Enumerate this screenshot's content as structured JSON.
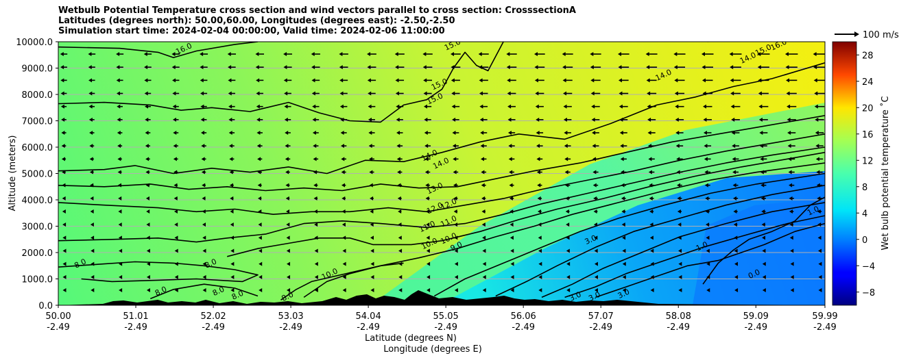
{
  "title": {
    "line1": "Wetbulb Potential Temperature cross section and wind vectors parallel to cross section: CrosssectionA",
    "line2": "Latitudes (degrees north): 50.00,60.00, Longitudes (degrees east): -2.50,-2.50",
    "line3": "Simulation start time: 2024-02-04 00:00:00, Valid time: 2024-02-06 11:00:00"
  },
  "chart_data": {
    "type": "heatmap",
    "xlabel_line1": "Latitude (degrees N)",
    "xlabel_line2": "Longitude (degrees E)",
    "ylabel": "Altitude (meters)",
    "x_range": [
      50.0,
      59.99
    ],
    "y_range": [
      0,
      10000
    ],
    "x_ticks": [
      {
        "lat": "50.00",
        "lon": "-2.49",
        "value": 50.0
      },
      {
        "lat": "51.01",
        "lon": "-2.49",
        "value": 51.01
      },
      {
        "lat": "52.02",
        "lon": "-2.49",
        "value": 52.02
      },
      {
        "lat": "53.03",
        "lon": "-2.49",
        "value": 53.03
      },
      {
        "lat": "54.04",
        "lon": "-2.49",
        "value": 54.04
      },
      {
        "lat": "55.05",
        "lon": "-2.49",
        "value": 55.05
      },
      {
        "lat": "56.06",
        "lon": "-2.49",
        "value": 56.06
      },
      {
        "lat": "57.07",
        "lon": "-2.49",
        "value": 57.07
      },
      {
        "lat": "58.08",
        "lon": "-2.49",
        "value": 58.08
      },
      {
        "lat": "59.09",
        "lon": "-2.49",
        "value": 59.09
      },
      {
        "lat": "59.99",
        "lon": "-2.49",
        "value": 59.99
      }
    ],
    "y_ticks": [
      "0.0",
      "1000.0",
      "2000.0",
      "3000.0",
      "4000.0",
      "5000.0",
      "6000.0",
      "7000.0",
      "8000.0",
      "9000.0",
      "10000.0"
    ],
    "grid": "horizontal",
    "colorbar": {
      "label": "Wet bulb potential temperature $^\\circ$C",
      "label_display": "Wet bulb potential temperature ˚C",
      "range": [
        -10,
        30
      ],
      "ticks": [
        "−8",
        "−4",
        "0",
        "4",
        "8",
        "12",
        "16",
        "20",
        "24",
        "28"
      ],
      "tick_values": [
        -8,
        -4,
        0,
        4,
        8,
        12,
        16,
        20,
        24,
        28
      ]
    },
    "quiver_key": "100 m/s",
    "contour_labels": [
      {
        "text": "16.0",
        "x": 51.65,
        "y": 9650
      },
      {
        "text": "15.0",
        "x": 55.15,
        "y": 9800
      },
      {
        "text": "15.0",
        "x": 54.98,
        "y": 8300
      },
      {
        "text": "15.0",
        "x": 54.92,
        "y": 7750
      },
      {
        "text": "14.0",
        "x": 54.85,
        "y": 5600
      },
      {
        "text": "14.0",
        "x": 55.0,
        "y": 5300
      },
      {
        "text": "13.0",
        "x": 54.92,
        "y": 4350
      },
      {
        "text": "12.0",
        "x": 54.92,
        "y": 3600
      },
      {
        "text": "12.0",
        "x": 55.1,
        "y": 3750
      },
      {
        "text": "11.0",
        "x": 54.82,
        "y": 2900
      },
      {
        "text": "11.0",
        "x": 55.1,
        "y": 3100
      },
      {
        "text": "10.0",
        "x": 54.85,
        "y": 2250
      },
      {
        "text": "10.0",
        "x": 55.1,
        "y": 2450
      },
      {
        "text": "9.0",
        "x": 55.2,
        "y": 2150
      },
      {
        "text": "10.0",
        "x": 53.55,
        "y": 1100
      },
      {
        "text": "8.0",
        "x": 50.3,
        "y": 1500
      },
      {
        "text": "8.0",
        "x": 52.0,
        "y": 1500
      },
      {
        "text": "8.0",
        "x": 51.35,
        "y": 450
      },
      {
        "text": "8.0",
        "x": 52.1,
        "y": 450
      },
      {
        "text": "8.0",
        "x": 52.35,
        "y": 300
      },
      {
        "text": "8.0",
        "x": 53.0,
        "y": 250
      },
      {
        "text": "3.0",
        "x": 56.95,
        "y": 2400
      },
      {
        "text": "3.0",
        "x": 56.75,
        "y": 250
      },
      {
        "text": "3.0",
        "x": 57.0,
        "y": 250
      },
      {
        "text": "3.0",
        "x": 57.38,
        "y": 350
      },
      {
        "text": "1.0",
        "x": 58.4,
        "y": 2150
      },
      {
        "text": "1.0",
        "x": 59.85,
        "y": 3500
      },
      {
        "text": "0.0",
        "x": 59.08,
        "y": 1100
      },
      {
        "text": "14.0",
        "x": 57.9,
        "y": 8650
      },
      {
        "text": "14.0",
        "x": 59.0,
        "y": 9300
      },
      {
        "text": "15.0",
        "x": 58.55,
        "y": 10100
      },
      {
        "text": "15.0",
        "x": 59.2,
        "y": 9600
      },
      {
        "text": "16.0",
        "x": 59.4,
        "y": 9800
      }
    ],
    "contours": [
      {
        "level": 16,
        "points": [
          [
            50,
            9800
          ],
          [
            50.8,
            9750
          ],
          [
            51.3,
            9600
          ],
          [
            51.5,
            9400
          ],
          [
            51.8,
            9650
          ],
          [
            52.3,
            9900
          ],
          [
            52.6,
            10000
          ]
        ]
      },
      {
        "level": 15,
        "points": [
          [
            50,
            7650
          ],
          [
            50.6,
            7700
          ],
          [
            51.2,
            7600
          ],
          [
            51.6,
            7400
          ],
          [
            52.0,
            7500
          ],
          [
            52.5,
            7350
          ],
          [
            53.0,
            7700
          ],
          [
            53.4,
            7300
          ],
          [
            53.8,
            7000
          ],
          [
            54.2,
            6950
          ],
          [
            54.5,
            7600
          ],
          [
            54.8,
            7800
          ],
          [
            55.0,
            8200
          ],
          [
            55.15,
            9000
          ],
          [
            55.3,
            9600
          ],
          [
            55.45,
            9100
          ],
          [
            55.6,
            8900
          ],
          [
            55.8,
            10000
          ]
        ]
      },
      {
        "level": 14,
        "points": [
          [
            50,
            5100
          ],
          [
            50.6,
            5150
          ],
          [
            51.0,
            5300
          ],
          [
            51.5,
            5000
          ],
          [
            52.0,
            5200
          ],
          [
            52.5,
            5050
          ],
          [
            53.0,
            5250
          ],
          [
            53.5,
            5000
          ],
          [
            54.0,
            5500
          ],
          [
            54.5,
            5450
          ],
          [
            55.0,
            5800
          ],
          [
            55.5,
            6200
          ],
          [
            56.0,
            6500
          ],
          [
            56.6,
            6300
          ],
          [
            57.2,
            6900
          ],
          [
            57.8,
            7600
          ],
          [
            58.3,
            7900
          ],
          [
            58.8,
            8300
          ],
          [
            59.3,
            8600
          ],
          [
            59.99,
            9200
          ]
        ]
      },
      {
        "level": 13,
        "points": [
          [
            50,
            4550
          ],
          [
            50.6,
            4500
          ],
          [
            51.2,
            4600
          ],
          [
            51.7,
            4400
          ],
          [
            52.2,
            4500
          ],
          [
            52.7,
            4350
          ],
          [
            53.2,
            4450
          ],
          [
            53.7,
            4350
          ],
          [
            54.2,
            4600
          ],
          [
            54.7,
            4450
          ],
          [
            55.2,
            4500
          ],
          [
            55.7,
            4800
          ],
          [
            56.2,
            5100
          ],
          [
            56.8,
            5400
          ],
          [
            57.4,
            5800
          ],
          [
            58.0,
            6200
          ],
          [
            58.6,
            6500
          ],
          [
            59.2,
            6800
          ],
          [
            59.99,
            7200
          ]
        ]
      },
      {
        "level": 12,
        "points": [
          [
            50,
            3900
          ],
          [
            50.6,
            3800
          ],
          [
            51.3,
            3700
          ],
          [
            51.8,
            3550
          ],
          [
            52.3,
            3650
          ],
          [
            52.8,
            3450
          ],
          [
            53.3,
            3550
          ],
          [
            53.8,
            3550
          ],
          [
            54.3,
            3700
          ],
          [
            54.8,
            3550
          ],
          [
            55.3,
            3800
          ],
          [
            55.8,
            4050
          ],
          [
            56.3,
            4400
          ],
          [
            56.9,
            4750
          ],
          [
            57.5,
            5100
          ],
          [
            58.1,
            5500
          ],
          [
            58.7,
            5850
          ],
          [
            59.3,
            6150
          ],
          [
            59.99,
            6500
          ]
        ]
      },
      {
        "level": 11,
        "points": [
          [
            50,
            2450
          ],
          [
            50.7,
            2500
          ],
          [
            51.3,
            2550
          ],
          [
            51.8,
            2400
          ],
          [
            52.2,
            2550
          ],
          [
            52.7,
            2700
          ],
          [
            53.2,
            3100
          ],
          [
            53.7,
            3200
          ],
          [
            54.2,
            3100
          ],
          [
            54.8,
            2950
          ],
          [
            55.3,
            3100
          ],
          [
            55.8,
            3450
          ],
          [
            56.3,
            3850
          ],
          [
            56.9,
            4250
          ],
          [
            57.5,
            4650
          ],
          [
            58.1,
            5050
          ],
          [
            58.7,
            5400
          ],
          [
            59.3,
            5700
          ],
          [
            59.99,
            6000
          ]
        ]
      },
      {
        "level": 10,
        "points": [
          [
            52.2,
            1850
          ],
          [
            52.6,
            2150
          ],
          [
            53.0,
            2350
          ],
          [
            53.4,
            2550
          ],
          [
            53.8,
            2550
          ],
          [
            54.1,
            2300
          ],
          [
            54.6,
            2300
          ],
          [
            55.0,
            2450
          ],
          [
            55.5,
            2800
          ],
          [
            56.0,
            3250
          ],
          [
            56.5,
            3650
          ],
          [
            57.1,
            4050
          ],
          [
            57.7,
            4500
          ],
          [
            58.3,
            4900
          ],
          [
            58.9,
            5250
          ],
          [
            59.5,
            5550
          ],
          [
            59.99,
            5800
          ]
        ]
      },
      {
        "level": 9,
        "points": [
          [
            53.2,
            300
          ],
          [
            53.5,
            900
          ],
          [
            53.8,
            1200
          ],
          [
            54.2,
            1500
          ],
          [
            54.7,
            1800
          ],
          [
            55.2,
            2150
          ],
          [
            55.7,
            2600
          ],
          [
            56.2,
            3000
          ],
          [
            56.7,
            3450
          ],
          [
            57.3,
            3900
          ],
          [
            57.9,
            4350
          ],
          [
            58.5,
            4750
          ],
          [
            59.1,
            5050
          ],
          [
            59.99,
            5400
          ]
        ]
      },
      {
        "level": 8,
        "points": [
          [
            54.9,
            350
          ],
          [
            55.3,
            1000
          ],
          [
            55.8,
            1600
          ],
          [
            56.3,
            2200
          ],
          [
            56.8,
            2800
          ],
          [
            57.3,
            3300
          ],
          [
            57.9,
            3800
          ],
          [
            58.5,
            4250
          ],
          [
            59.1,
            4600
          ],
          [
            59.99,
            5000
          ]
        ]
      },
      {
        "level": 6,
        "points": [
          [
            55.7,
            350
          ],
          [
            56.1,
            900
          ],
          [
            56.5,
            1500
          ],
          [
            57.0,
            2200
          ],
          [
            57.5,
            2800
          ],
          [
            58.1,
            3300
          ],
          [
            58.7,
            3800
          ],
          [
            59.3,
            4200
          ],
          [
            59.99,
            4550
          ]
        ]
      },
      {
        "level": 5,
        "points": [
          [
            56.3,
            300
          ],
          [
            56.7,
            800
          ],
          [
            57.1,
            1400
          ],
          [
            57.6,
            2000
          ],
          [
            58.1,
            2600
          ],
          [
            58.7,
            3100
          ],
          [
            59.3,
            3550
          ],
          [
            59.99,
            3900
          ]
        ]
      },
      {
        "level": 4,
        "points": [
          [
            56.6,
            300
          ],
          [
            57.0,
            700
          ],
          [
            57.4,
            1200
          ],
          [
            57.9,
            1700
          ],
          [
            58.4,
            2200
          ],
          [
            59.0,
            2700
          ],
          [
            59.5,
            3100
          ],
          [
            59.99,
            3400
          ]
        ]
      },
      {
        "level": 3,
        "points": [
          [
            57.0,
            300
          ],
          [
            57.4,
            700
          ],
          [
            57.8,
            1100
          ],
          [
            58.2,
            1500
          ],
          [
            58.6,
            1700
          ],
          [
            59.2,
            2300
          ],
          [
            59.6,
            2800
          ],
          [
            59.99,
            3100
          ]
        ]
      },
      {
        "level": 1,
        "points": [
          [
            58.4,
            800
          ],
          [
            58.6,
            1600
          ],
          [
            58.8,
            2100
          ],
          [
            59.0,
            2500
          ],
          [
            59.3,
            2800
          ],
          [
            59.6,
            3200
          ],
          [
            59.8,
            3800
          ],
          [
            59.99,
            4100
          ]
        ]
      },
      {
        "level": 8,
        "points": [
          [
            50,
            1450
          ],
          [
            50.5,
            1550
          ],
          [
            51.0,
            1650
          ],
          [
            51.5,
            1600
          ],
          [
            51.9,
            1500
          ],
          [
            52.3,
            1350
          ],
          [
            52.6,
            1150
          ],
          [
            52.4,
            900
          ],
          [
            51.8,
            1000
          ],
          [
            51.3,
            950
          ],
          [
            50.7,
            900
          ],
          [
            50.3,
            1000
          ]
        ]
      },
      {
        "level": 8,
        "points": [
          [
            51.2,
            250
          ],
          [
            51.5,
            600
          ],
          [
            51.9,
            800
          ],
          [
            52.3,
            650
          ],
          [
            52.6,
            350
          ]
        ]
      },
      {
        "level": 8,
        "points": [
          [
            52.9,
            200
          ],
          [
            53.1,
            600
          ],
          [
            53.3,
            900
          ],
          [
            53.6,
            1100
          ],
          [
            53.9,
            1300
          ],
          [
            54.2,
            1500
          ],
          [
            54.5,
            1600
          ]
        ]
      }
    ]
  }
}
